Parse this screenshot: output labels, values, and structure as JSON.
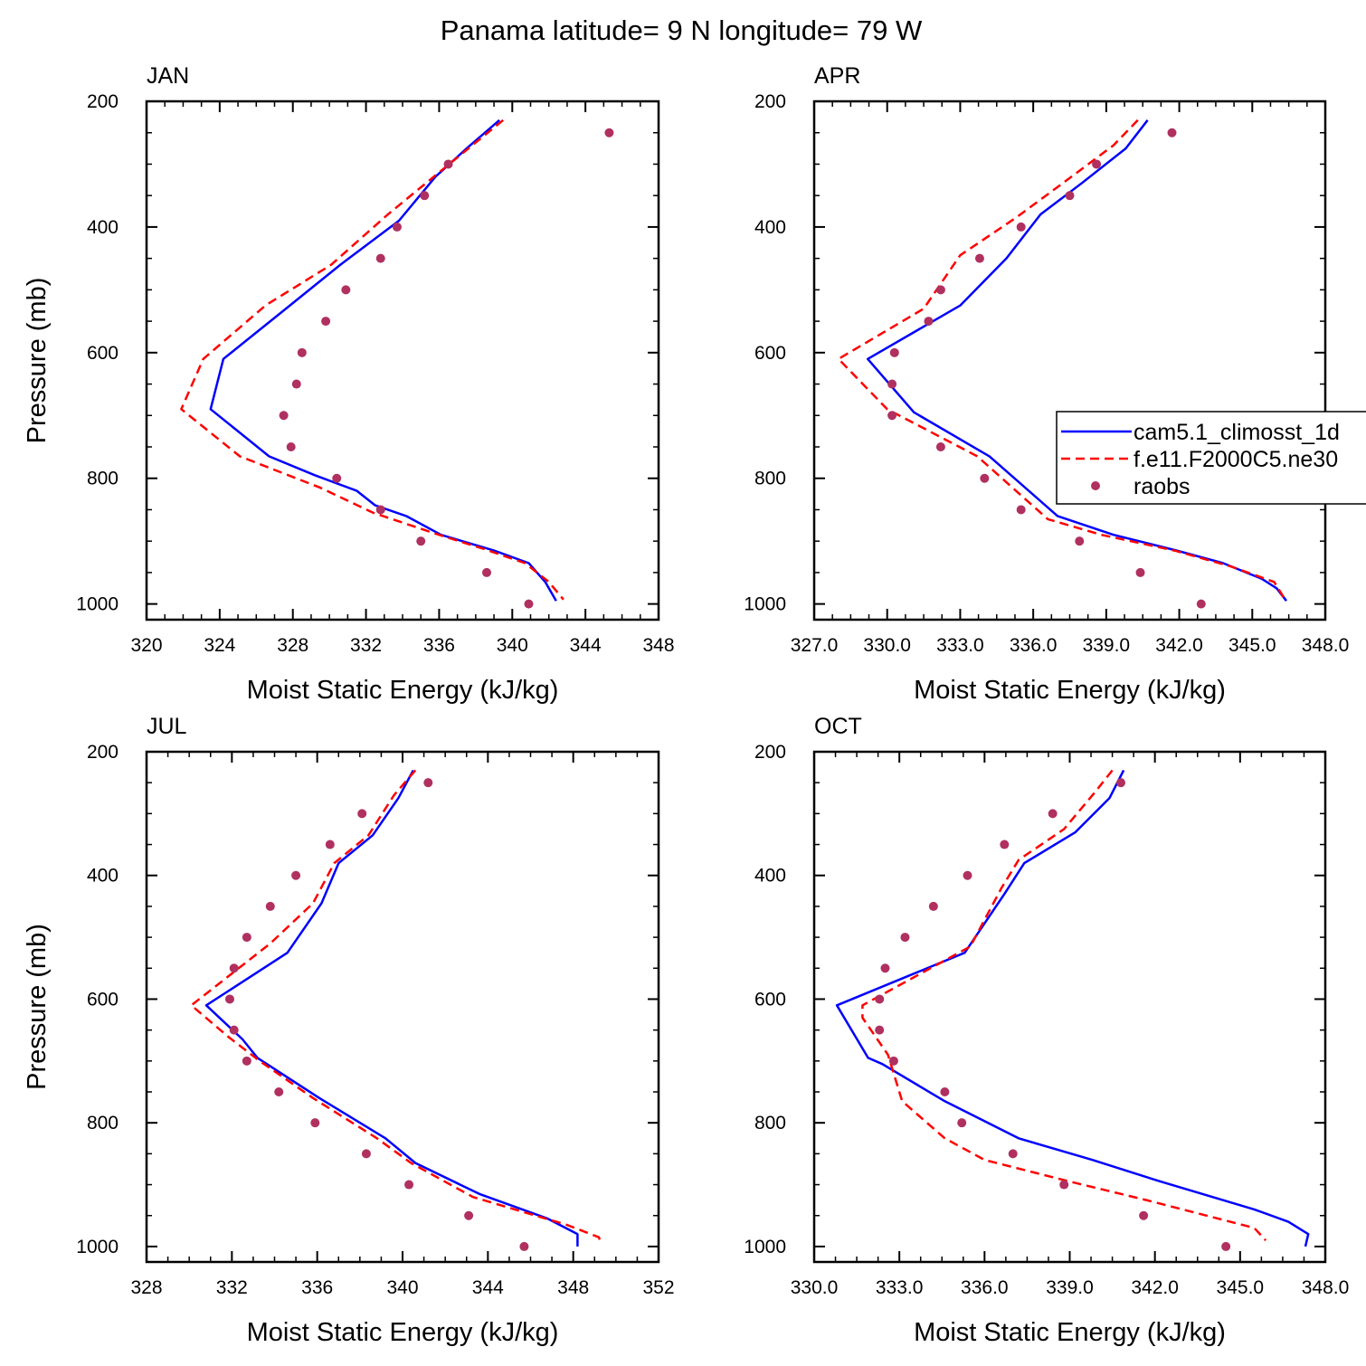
{
  "figure": {
    "title": "Panama  latitude= 9 N longitude= 79 W"
  },
  "colors": {
    "cam5": "#0000ff",
    "f_e11": "#ff0000",
    "raobs": "#b03060",
    "axis": "#000000",
    "background": "#ffffff"
  },
  "legend": {
    "placement": "right-middle (APR panel)",
    "entries": [
      {
        "label": "cam5.1_climosst_1d",
        "style": "solid-line",
        "color": "#0000ff"
      },
      {
        "label": "f.e11.F2000C5.ne30",
        "style": "dashed-line",
        "color": "#ff0000"
      },
      {
        "label": "raobs",
        "style": "marker",
        "color": "#b03060"
      }
    ]
  },
  "chart_data": [
    {
      "type": "line",
      "panel": "JAN",
      "title": "JAN",
      "xlabel": "Moist Static Energy (kJ/kg)",
      "ylabel": "Pressure (mb)",
      "xlim": [
        320,
        348
      ],
      "ylim": [
        1025,
        200
      ],
      "y_inverted": true,
      "xticks": [
        320,
        324,
        328,
        332,
        336,
        340,
        344,
        348
      ],
      "xtick_labels": [
        "320",
        "324",
        "328",
        "332",
        "336",
        "340",
        "344",
        "348"
      ],
      "yticks": [
        200,
        400,
        600,
        800,
        1000
      ],
      "ytick_labels": [
        "200",
        "400",
        "600",
        "800",
        "1000"
      ],
      "series": [
        {
          "name": "cam5.1_climosst_1d",
          "style": "solid",
          "color": "#0000ff",
          "x": [
            339.3,
            337.5,
            335.8,
            333.8,
            330.6,
            327.2,
            324.2,
            323.5,
            326.7,
            329.2,
            331.5,
            332.5,
            334.2,
            336.1,
            339.0,
            340.9,
            341.8,
            342.4
          ],
          "y": [
            230,
            275,
            320,
            390,
            460,
            540,
            610,
            690,
            765,
            795,
            820,
            843,
            860,
            890,
            915,
            935,
            965,
            995
          ]
        },
        {
          "name": "f.e11.F2000C5.ne30",
          "style": "dashed",
          "color": "#ff0000",
          "x": [
            339.5,
            337.6,
            335.5,
            333.2,
            330.1,
            326.5,
            323.1,
            321.9,
            325.1,
            329.5,
            332.4,
            336.0,
            338.5,
            340.7,
            342.0,
            342.8
          ],
          "y": [
            230,
            275,
            325,
            380,
            460,
            525,
            610,
            690,
            765,
            815,
            855,
            890,
            913,
            935,
            965,
            993
          ]
        },
        {
          "name": "raobs",
          "style": "markers",
          "color": "#b03060",
          "x": [
            345.3,
            336.5,
            335.2,
            333.7,
            332.8,
            330.9,
            329.8,
            328.5,
            328.2,
            327.5,
            327.9,
            330.4,
            332.8,
            335.0,
            338.6,
            340.9
          ],
          "y": [
            250,
            300,
            350,
            400,
            450,
            500,
            550,
            600,
            650,
            700,
            750,
            800,
            850,
            900,
            950,
            1000
          ]
        }
      ]
    },
    {
      "type": "line",
      "panel": "APR",
      "title": "APR",
      "xlabel": "Moist Static Energy (kJ/kg)",
      "ylabel": "",
      "xlim": [
        327.0,
        348.0
      ],
      "ylim": [
        1025,
        200
      ],
      "y_inverted": true,
      "xticks": [
        327.0,
        330.0,
        333.0,
        336.0,
        339.0,
        342.0,
        345.0,
        348.0
      ],
      "xtick_labels": [
        "327.0",
        "330.0",
        "333.0",
        "336.0",
        "339.0",
        "342.0",
        "345.0",
        "348.0"
      ],
      "yticks": [
        200,
        400,
        600,
        800,
        1000
      ],
      "ytick_labels": [
        "200",
        "400",
        "600",
        "800",
        "1000"
      ],
      "series": [
        {
          "name": "cam5.1_climosst_1d",
          "style": "solid",
          "color": "#0000ff",
          "x": [
            340.7,
            339.8,
            338.0,
            336.3,
            334.9,
            333.0,
            329.2,
            331.1,
            334.2,
            337.0,
            339.3,
            341.9,
            343.8,
            345.4,
            346.0,
            346.4
          ],
          "y": [
            230,
            275,
            330,
            380,
            450,
            525,
            610,
            695,
            765,
            860,
            890,
            915,
            935,
            960,
            975,
            995
          ]
        },
        {
          "name": "f.e11.F2000C5.ne30",
          "style": "dashed",
          "color": "#ff0000",
          "x": [
            340.3,
            339.3,
            337.4,
            335.3,
            333.0,
            331.5,
            328.0,
            330.0,
            333.7,
            336.6,
            338.8,
            341.8,
            344.1,
            345.9,
            346.3
          ],
          "y": [
            230,
            270,
            325,
            385,
            445,
            530,
            610,
            690,
            765,
            865,
            890,
            915,
            940,
            965,
            990
          ]
        },
        {
          "name": "raobs",
          "style": "markers",
          "color": "#b03060",
          "x": [
            341.7,
            338.6,
            337.5,
            335.5,
            333.8,
            332.2,
            331.7,
            330.3,
            330.2,
            330.2,
            332.2,
            334.0,
            335.5,
            337.9,
            340.4,
            342.9
          ],
          "y": [
            250,
            300,
            350,
            400,
            450,
            500,
            550,
            600,
            650,
            700,
            750,
            800,
            850,
            900,
            950,
            1000
          ]
        }
      ]
    },
    {
      "type": "line",
      "panel": "JUL",
      "title": "JUL",
      "xlabel": "Moist Static Energy (kJ/kg)",
      "ylabel": "Pressure (mb)",
      "xlim": [
        328,
        352
      ],
      "ylim": [
        1025,
        200
      ],
      "y_inverted": true,
      "xticks": [
        328,
        332,
        336,
        340,
        344,
        348,
        352
      ],
      "xtick_labels": [
        "328",
        "332",
        "336",
        "340",
        "344",
        "348",
        "352"
      ],
      "yticks": [
        200,
        400,
        600,
        800,
        1000
      ],
      "ytick_labels": [
        "200",
        "400",
        "600",
        "800",
        "1000"
      ],
      "series": [
        {
          "name": "cam5.1_climosst_1d",
          "style": "solid",
          "color": "#0000ff",
          "x": [
            340.5,
            339.8,
            338.6,
            337.0,
            336.2,
            334.6,
            330.8,
            332.5,
            333.2,
            336.1,
            339.2,
            340.6,
            343.6,
            346.8,
            348.2,
            348.2
          ],
          "y": [
            230,
            275,
            335,
            380,
            445,
            525,
            610,
            665,
            695,
            760,
            825,
            865,
            915,
            955,
            980,
            1000
          ]
        },
        {
          "name": "f.e11.F2000C5.ne30",
          "style": "dashed",
          "color": "#ff0000",
          "x": [
            340.6,
            339.6,
            338.4,
            336.8,
            335.8,
            333.8,
            330.1,
            331.8,
            333.3,
            335.8,
            338.8,
            340.4,
            343.3,
            347.7,
            349.2,
            349.3
          ],
          "y": [
            230,
            270,
            335,
            380,
            445,
            510,
            610,
            660,
            700,
            760,
            825,
            865,
            920,
            965,
            985,
            995
          ]
        },
        {
          "name": "raobs",
          "style": "markers",
          "color": "#b03060",
          "x": [
            341.2,
            338.1,
            336.6,
            335.0,
            333.8,
            332.7,
            332.1,
            331.9,
            332.1,
            332.7,
            334.2,
            335.9,
            338.3,
            340.3,
            343.1,
            345.7
          ],
          "y": [
            250,
            300,
            350,
            400,
            450,
            500,
            550,
            600,
            650,
            700,
            750,
            800,
            850,
            900,
            950,
            1000
          ]
        }
      ]
    },
    {
      "type": "line",
      "panel": "OCT",
      "title": "OCT",
      "xlabel": "Moist Static Energy (kJ/kg)",
      "ylabel": "",
      "xlim": [
        330.0,
        348.0
      ],
      "ylim": [
        1025,
        200
      ],
      "y_inverted": true,
      "xticks": [
        330.0,
        333.0,
        336.0,
        339.0,
        342.0,
        345.0,
        348.0
      ],
      "xtick_labels": [
        "330.0",
        "333.0",
        "336.0",
        "339.0",
        "342.0",
        "345.0",
        "348.0"
      ],
      "yticks": [
        200,
        400,
        600,
        800,
        1000
      ],
      "ytick_labels": [
        "200",
        "400",
        "600",
        "800",
        "1000"
      ],
      "series": [
        {
          "name": "cam5.1_climosst_1d",
          "style": "solid",
          "color": "#0000ff",
          "x": [
            340.9,
            340.4,
            339.2,
            337.4,
            336.7,
            335.3,
            330.8,
            331.9,
            332.4,
            334.6,
            337.2,
            339.8,
            342.2,
            345.5,
            346.7,
            347.4,
            347.3
          ],
          "y": [
            230,
            275,
            330,
            380,
            430,
            525,
            610,
            695,
            705,
            765,
            825,
            860,
            895,
            940,
            960,
            980,
            1000
          ]
        },
        {
          "name": "f.e11.F2000C5.ne30",
          "style": "dashed",
          "color": "#ff0000",
          "x": [
            340.5,
            339.9,
            338.8,
            337.2,
            336.6,
            335.5,
            331.7,
            331.7,
            332.6,
            333.1,
            334.6,
            336.0,
            339.0,
            341.7,
            345.5,
            345.9
          ],
          "y": [
            230,
            265,
            325,
            375,
            420,
            515,
            610,
            630,
            690,
            765,
            825,
            860,
            895,
            925,
            970,
            990
          ]
        },
        {
          "name": "raobs",
          "style": "markers",
          "color": "#b03060",
          "x": [
            340.8,
            338.4,
            336.7,
            335.4,
            334.2,
            333.2,
            332.5,
            332.3,
            332.3,
            332.8,
            334.6,
            335.2,
            337.0,
            338.8,
            341.6,
            344.5
          ],
          "y": [
            250,
            300,
            350,
            400,
            450,
            500,
            550,
            600,
            650,
            700,
            750,
            800,
            850,
            900,
            950,
            1000
          ]
        }
      ]
    }
  ]
}
